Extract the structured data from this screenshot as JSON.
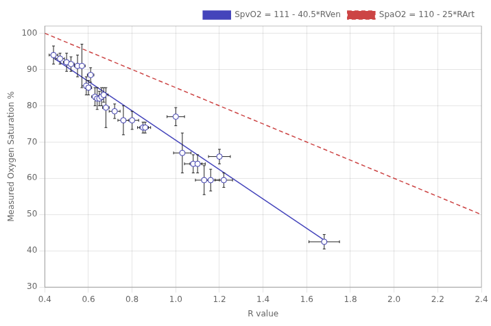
{
  "chart_data": {
    "type": "scatter",
    "xlabel": "R value",
    "ylabel": "Measured Oxygen Saturation %",
    "xlim": [
      0.4,
      2.4
    ],
    "ylim": [
      30,
      102
    ],
    "xticks": [
      0.4,
      0.6,
      0.8,
      {
        "value": 1.0,
        "label": "1.0"
      },
      1.2,
      1.4,
      1.6,
      1.8,
      {
        "value": 2.0,
        "label": "2.0"
      },
      2.2,
      2.4
    ],
    "yticks": [
      30,
      40,
      50,
      60,
      70,
      80,
      90,
      100
    ],
    "grid": true,
    "legend": "upper right",
    "series": [
      {
        "type": "scatter",
        "color": "#3333aa",
        "marker": "circle",
        "x": [
          0.44,
          0.47,
          0.5,
          0.52,
          0.55,
          0.57,
          0.59,
          0.6,
          0.61,
          0.63,
          0.64,
          0.65,
          0.66,
          0.67,
          0.68,
          0.72,
          0.76,
          0.8,
          0.85,
          0.86,
          1.0,
          1.03,
          1.08,
          1.1,
          1.13,
          1.16,
          1.2,
          1.22,
          1.68
        ],
        "values": [
          94.0,
          93.0,
          92.0,
          91.5,
          91.0,
          91.0,
          85.5,
          85.0,
          88.5,
          82.5,
          82.0,
          82.0,
          82.5,
          83.0,
          79.5,
          78.5,
          76.0,
          76.0,
          74.0,
          74.0,
          77.0,
          67.0,
          64.0,
          64.0,
          59.5,
          59.5,
          66.0,
          59.5,
          42.5
        ],
        "xerr": [
          0.02,
          0.02,
          0.015,
          0.015,
          0.015,
          0.015,
          0.02,
          0.015,
          0.015,
          0.015,
          0.015,
          0.015,
          0.015,
          0.02,
          0.015,
          0.025,
          0.025,
          0.03,
          0.025,
          0.025,
          0.04,
          0.04,
          0.04,
          0.035,
          0.04,
          0.04,
          0.05,
          0.04,
          0.07
        ],
        "yerr": [
          2.5,
          1.5,
          2.5,
          2.0,
          3.0,
          6.0,
          2.5,
          2.0,
          2.0,
          2.5,
          3.0,
          2.0,
          2.5,
          2.0,
          5.5,
          2.0,
          4.0,
          2.5,
          1.5,
          1.5,
          2.5,
          5.5,
          2.5,
          2.5,
          4.0,
          3.0,
          2.0,
          2.0,
          2.0
        ]
      },
      {
        "type": "line",
        "name": "SpvO2 = 111 - 40.5*RVen",
        "color": "#4444bb",
        "line_style": "solid",
        "x": [
          0.44,
          1.68
        ],
        "values": [
          93.18,
          42.96
        ]
      },
      {
        "type": "line",
        "name": "SpaO2 = 110 - 25*RArt",
        "color": "#cc4444",
        "line_style": "dashed",
        "x": [
          0.4,
          2.4
        ],
        "values": [
          100,
          50
        ]
      }
    ]
  }
}
